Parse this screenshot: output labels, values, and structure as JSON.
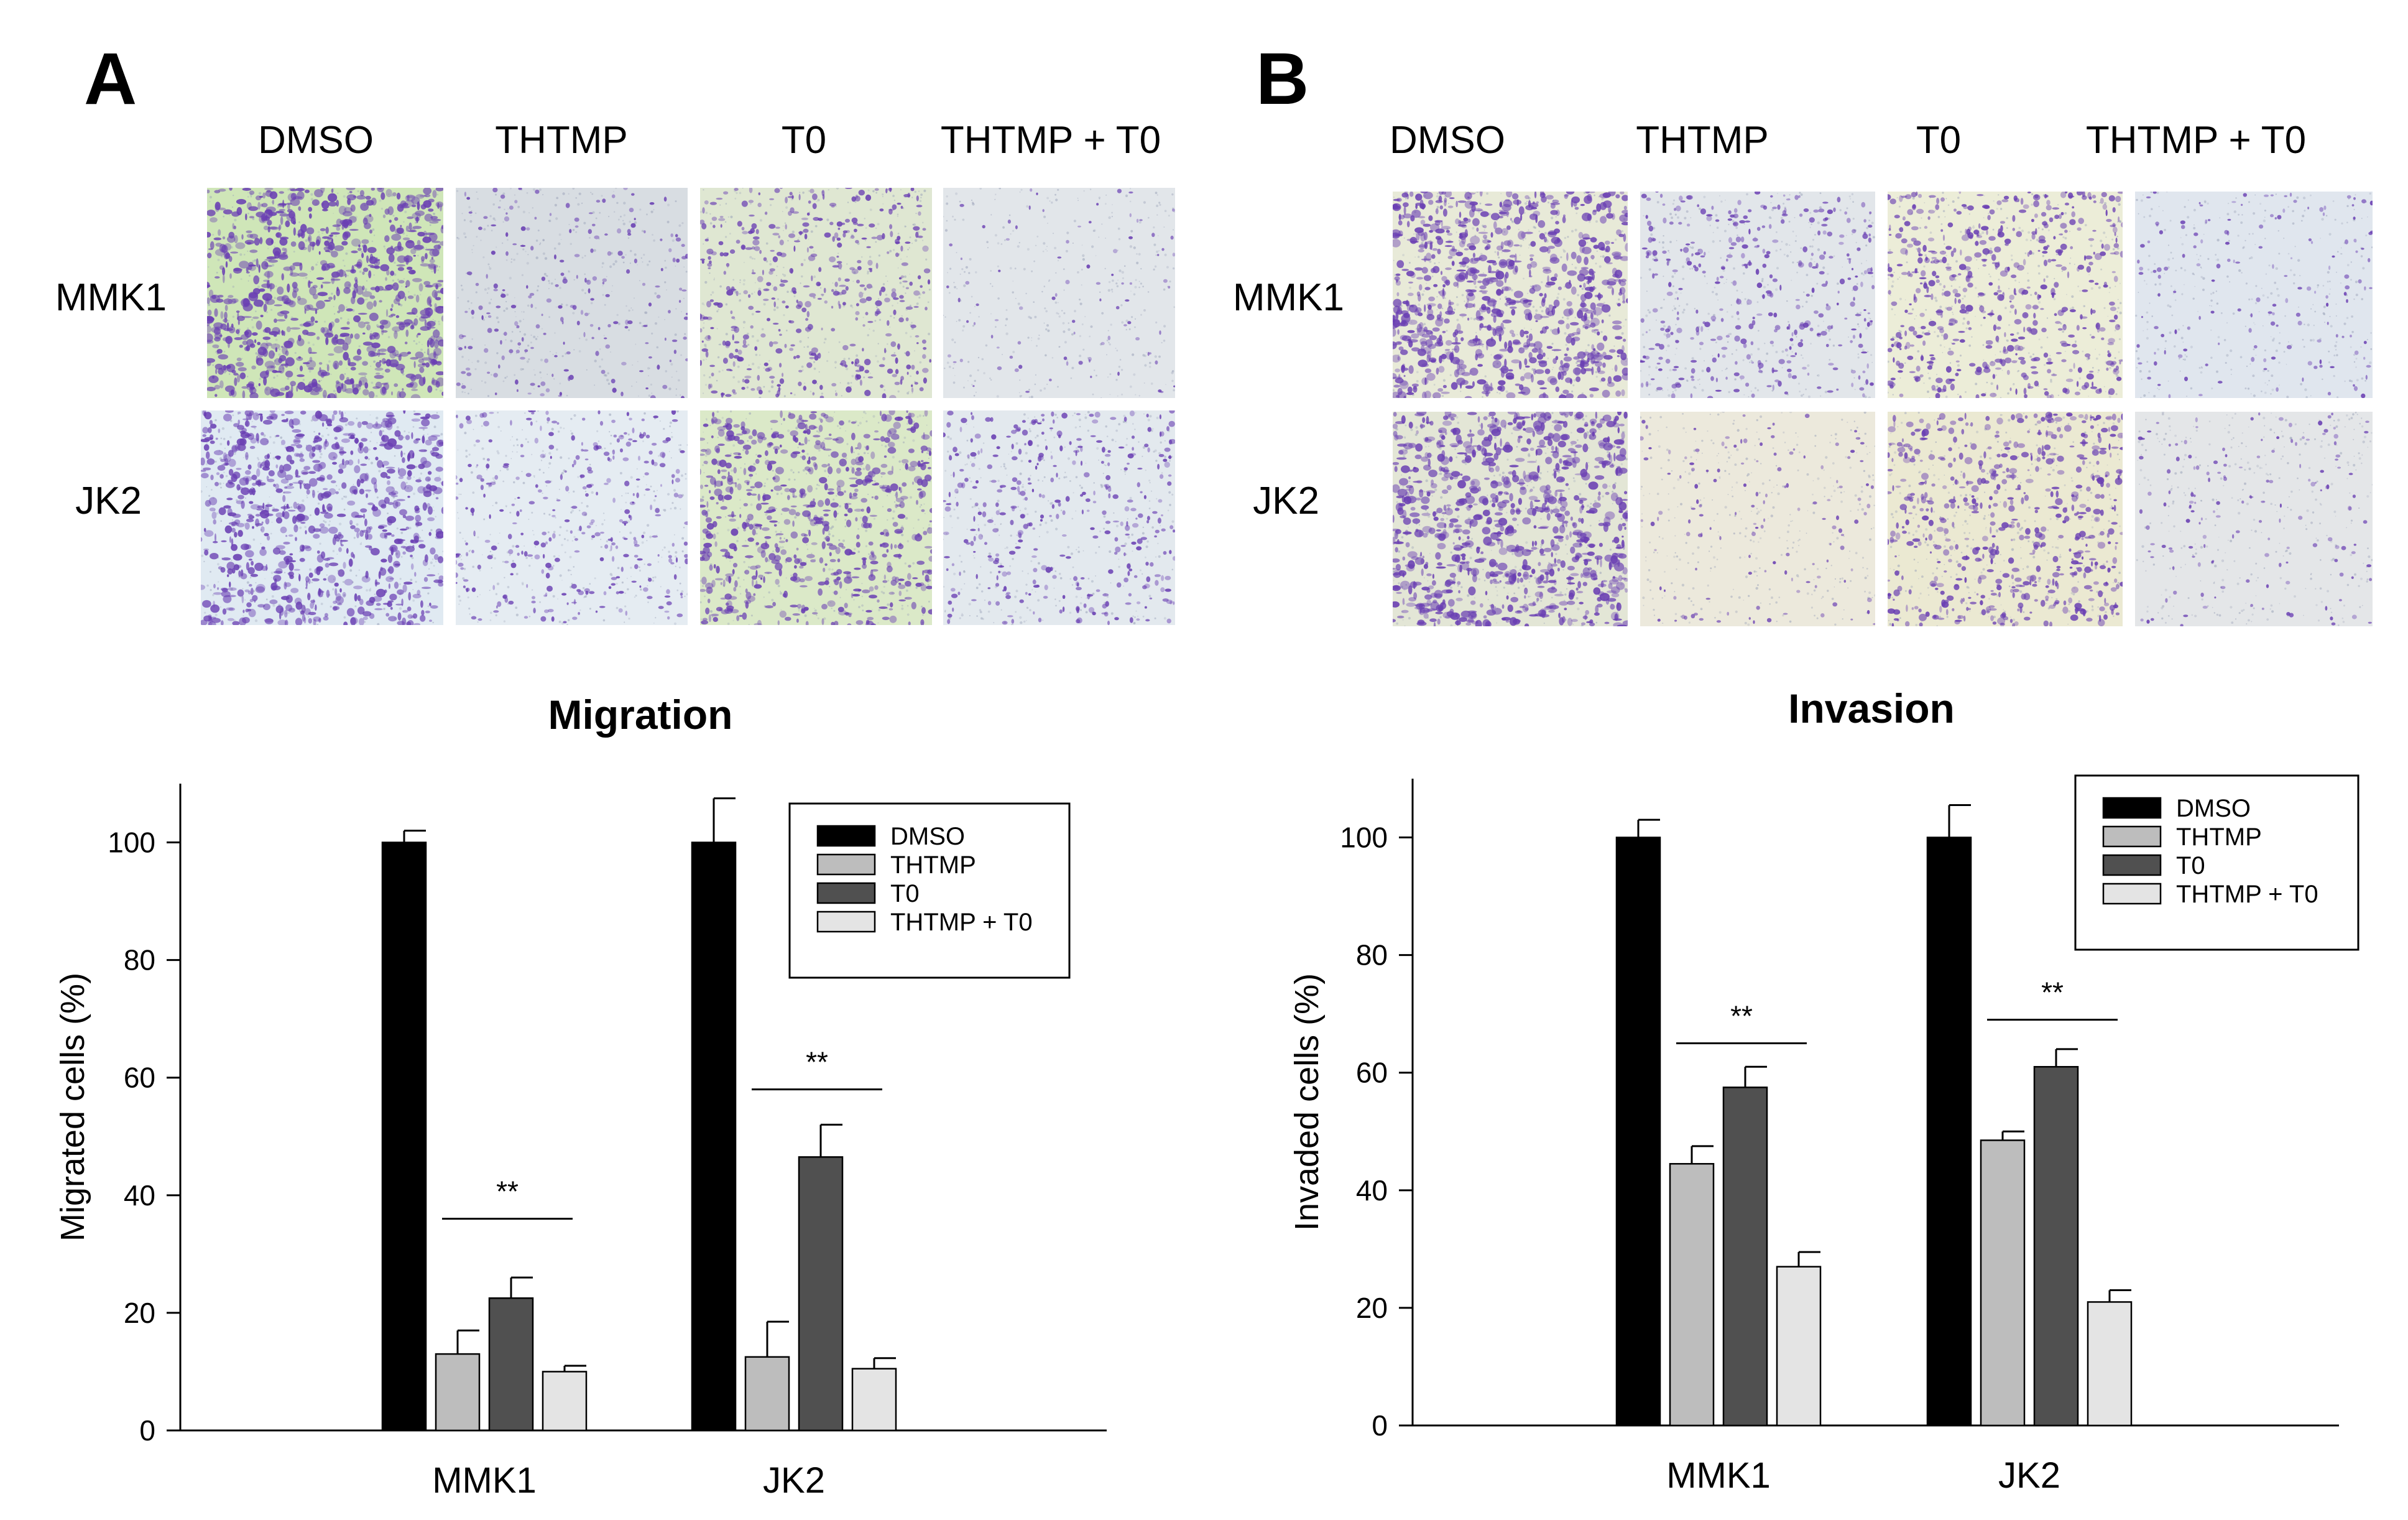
{
  "panels": [
    {
      "letter": "A",
      "columns": [
        "DMSO",
        "THTMP",
        "T0",
        "THTMP + T0"
      ],
      "rows": [
        "MMK1",
        "JK2"
      ]
    },
    {
      "letter": "B",
      "columns": [
        "DMSO",
        "THTMP",
        "T0",
        "THTMP + T0"
      ],
      "rows": [
        "MMK1",
        "JK2"
      ]
    }
  ],
  "colors": {
    "DMSO": "#000000",
    "THTMP": "#bdbdbd",
    "T0": "#505050",
    "THTMP + T0": "#e4e4e4",
    "stain": "#6a3fb3",
    "background": "#dfe3ea"
  },
  "chart_data": [
    {
      "type": "bar",
      "title": "Migration",
      "xlabel": "",
      "ylabel": "Migrated cells (%)",
      "ylim": [
        0,
        110
      ],
      "yticks": [
        0,
        20,
        40,
        60,
        80,
        100
      ],
      "categories": [
        "MMK1",
        "JK2"
      ],
      "legend_position": "top-right",
      "series": [
        {
          "name": "DMSO",
          "values": [
            100,
            100
          ],
          "errors": [
            2,
            7.5
          ]
        },
        {
          "name": "THTMP",
          "values": [
            13,
            12.5
          ],
          "errors": [
            4,
            6
          ]
        },
        {
          "name": "T0",
          "values": [
            22.5,
            46.5
          ],
          "errors": [
            3.5,
            5.5
          ]
        },
        {
          "name": "THTMP + T0",
          "values": [
            10,
            10.5
          ],
          "errors": [
            1,
            1.8
          ]
        }
      ],
      "annotations": [
        {
          "text": "**",
          "category": "MMK1",
          "y": 36
        },
        {
          "text": "**",
          "category": "JK2",
          "y": 58
        }
      ]
    },
    {
      "type": "bar",
      "title": "Invasion",
      "xlabel": "",
      "ylabel": "Invaded cells (%)",
      "ylim": [
        0,
        110
      ],
      "yticks": [
        0,
        20,
        40,
        60,
        80,
        100
      ],
      "categories": [
        "MMK1",
        "JK2"
      ],
      "legend_position": "top-right",
      "series": [
        {
          "name": "DMSO",
          "values": [
            100,
            100
          ],
          "errors": [
            3,
            5.5
          ]
        },
        {
          "name": "THTMP",
          "values": [
            44.5,
            48.5
          ],
          "errors": [
            3,
            1.5
          ]
        },
        {
          "name": "T0",
          "values": [
            57.5,
            61
          ],
          "errors": [
            3.5,
            3
          ]
        },
        {
          "name": "THTMP + T0",
          "values": [
            27,
            21
          ],
          "errors": [
            2.5,
            2
          ]
        }
      ],
      "annotations": [
        {
          "text": "**",
          "category": "MMK1",
          "y": 65
        },
        {
          "text": "**",
          "category": "JK2",
          "y": 69
        }
      ]
    }
  ]
}
